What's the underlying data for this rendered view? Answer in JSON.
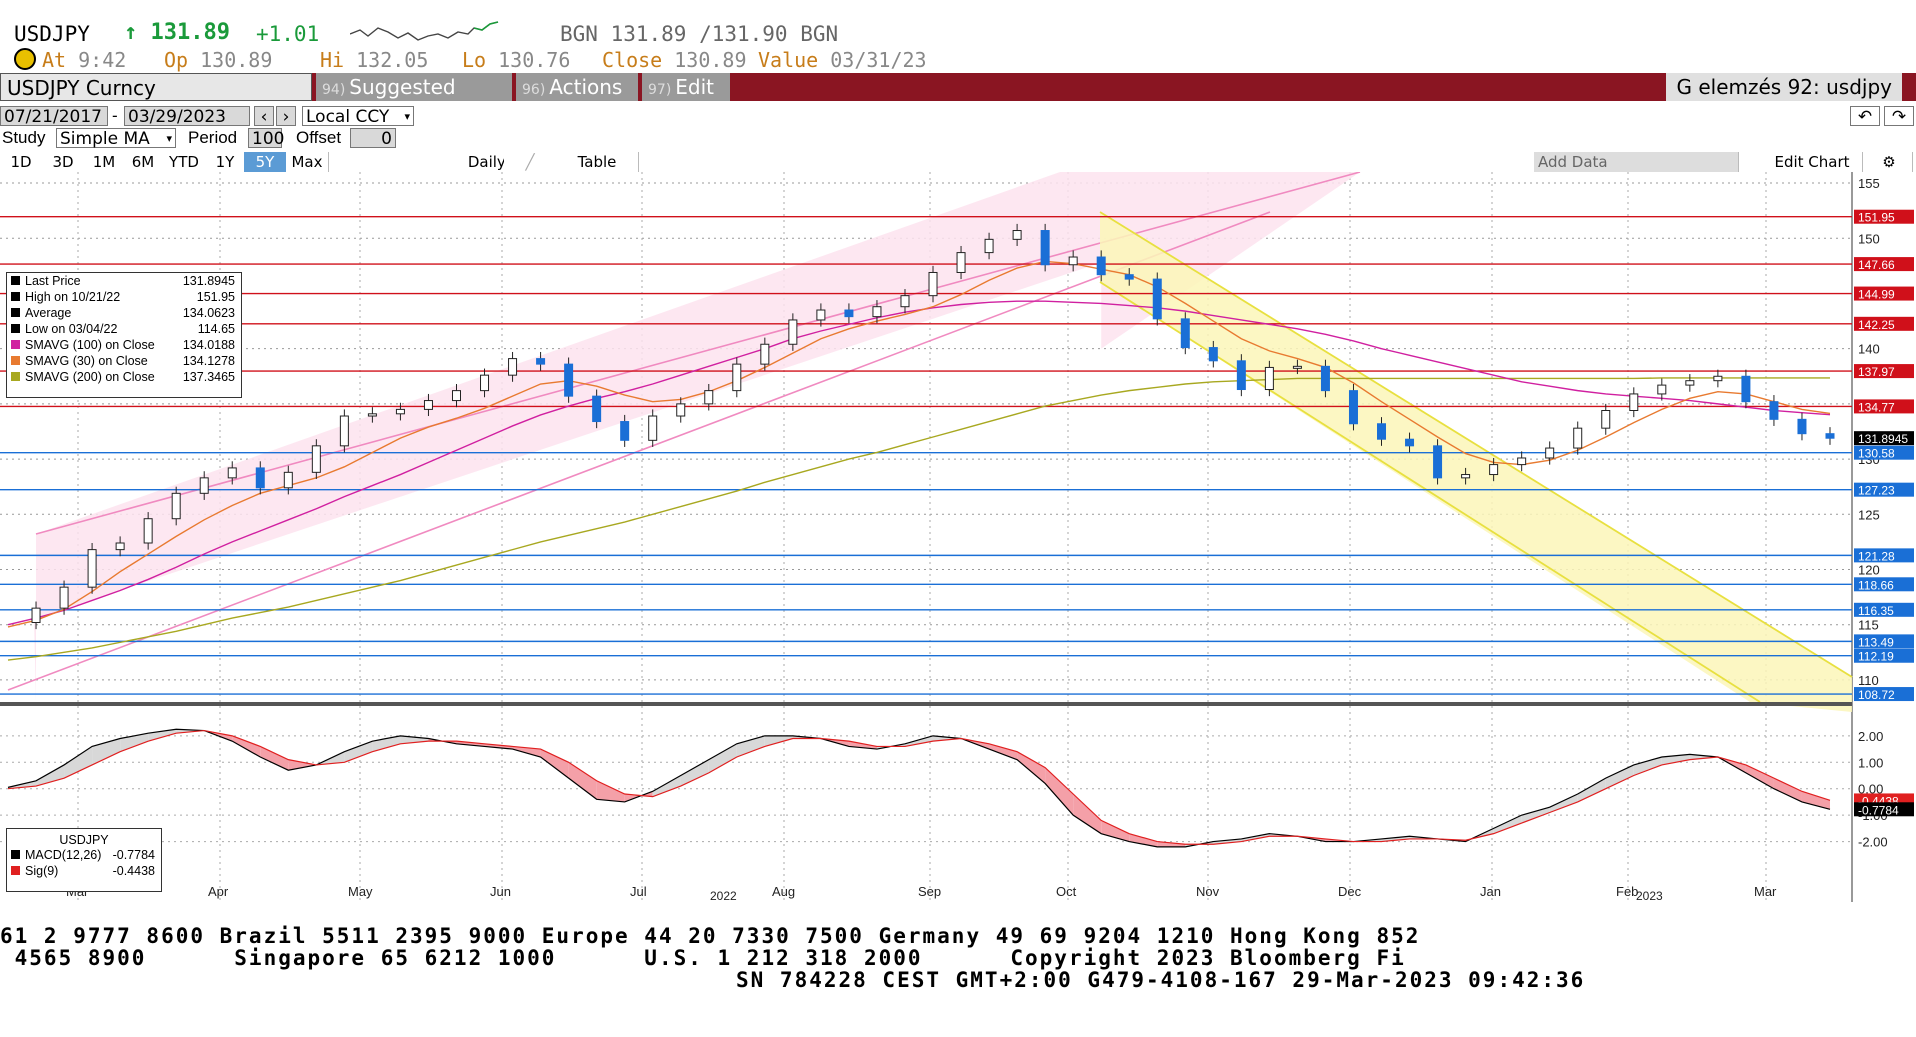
{
  "header": {
    "ticker": "USDJPY",
    "last": "↑ 131.89",
    "change": "+1.01",
    "bid_ask": "BGN 131.89 /131.90 BGN",
    "at_label": "At",
    "at_value": "9:42",
    "op_label": "Op",
    "op_value": "130.89",
    "hi_label": "Hi",
    "hi_value": "132.05",
    "lo_label": "Lo",
    "lo_value": "130.76",
    "close_label": "Close",
    "close_value": "130.89",
    "value_label": "Value",
    "value_value": "03/31/23"
  },
  "menubar": {
    "security": "USDJPY Curncy",
    "suggested": "Suggested Charts",
    "suggested_num": "94)",
    "actions": "Actions",
    "actions_num": "96)",
    "edit": "Edit",
    "edit_num": "97)",
    "right_title": "G elemzés 92: usdjpy"
  },
  "controls": {
    "start_date": "07/21/2017",
    "end_date": "03/29/2023",
    "currency": "Local CCY",
    "study_label": "Study",
    "study_value": "Simple MA",
    "period_label": "Period",
    "period_value": "100",
    "offset_label": "Offset",
    "offset_value": "0",
    "add_data": "Add Data",
    "edit_chart": "Edit Chart",
    "table": "Table",
    "frequency": "Daily"
  },
  "time_buttons": [
    "1D",
    "3D",
    "1M",
    "6M",
    "YTD",
    "1Y",
    "5Y",
    "Max"
  ],
  "selected_time_button": "5Y",
  "legend": {
    "rows": [
      {
        "label": "Last Price",
        "value": "131.8945",
        "color": "#000000"
      },
      {
        "label": "High on 10/21/22",
        "value": "151.95",
        "color": "#000000"
      },
      {
        "label": "Average",
        "value": "134.0623",
        "color": "#000000"
      },
      {
        "label": "Low on 03/04/22",
        "value": "114.65",
        "color": "#000000"
      },
      {
        "label": "SMAVG (100)  on Close",
        "value": "134.0188",
        "color": "#d020a0"
      },
      {
        "label": "SMAVG (30)  on Close",
        "value": "134.1278",
        "color": "#e87a30"
      },
      {
        "label": "SMAVG (200)  on Close",
        "value": "137.3465",
        "color": "#a8a820"
      }
    ]
  },
  "macd_legend": {
    "title": "USDJPY",
    "rows": [
      {
        "label": "MACD(12,26)",
        "value": "-0.7784",
        "color": "#000000"
      },
      {
        "label": "Sig(9)",
        "value": "-0.4438",
        "color": "#e02020"
      }
    ]
  },
  "chart_data": {
    "type": "candlestick",
    "title": "USDJPY Curncy",
    "y_range": [
      108,
      156
    ],
    "y_ticks": [
      110,
      115,
      120,
      125,
      130,
      135,
      140,
      145,
      150,
      155
    ],
    "price_tags": [
      {
        "value": 151.95,
        "label": "151.95",
        "type": "resistance"
      },
      {
        "value": 147.66,
        "label": "147.66",
        "type": "resistance"
      },
      {
        "value": 144.99,
        "label": "144.99",
        "type": "resistance"
      },
      {
        "value": 142.25,
        "label": "142.25",
        "type": "resistance"
      },
      {
        "value": 137.97,
        "label": "137.97",
        "type": "resistance"
      },
      {
        "value": 134.77,
        "label": "134.77",
        "type": "resistance"
      },
      {
        "value": 131.8945,
        "label": "131.8945",
        "type": "last"
      },
      {
        "value": 130.58,
        "label": "130.58",
        "type": "support"
      },
      {
        "value": 127.23,
        "label": "127.23",
        "type": "support"
      },
      {
        "value": 121.28,
        "label": "121.28",
        "type": "support"
      },
      {
        "value": 118.66,
        "label": "118.66",
        "type": "support"
      },
      {
        "value": 116.35,
        "label": "116.35",
        "type": "support"
      },
      {
        "value": 113.49,
        "label": "113.49",
        "type": "support"
      },
      {
        "value": 112.19,
        "label": "112.19",
        "type": "support"
      },
      {
        "value": 108.72,
        "label": "108.72",
        "type": "support"
      }
    ],
    "x_labels": [
      "Mar",
      "Apr",
      "May",
      "Jun",
      "Jul",
      "Aug",
      "Sep",
      "Oct",
      "Nov",
      "Dec",
      "Jan",
      "Feb",
      "Mar"
    ],
    "year_labels": [
      "2022",
      "2023"
    ],
    "price_weekly": [
      115.2,
      116.5,
      118.4,
      121.8,
      122.4,
      124.6,
      126.9,
      128.3,
      129.2,
      127.4,
      128.8,
      131.2,
      133.9,
      134.1,
      134.5,
      135.3,
      136.2,
      137.6,
      139.1,
      138.6,
      135.7,
      133.4,
      131.7,
      133.9,
      135.0,
      136.2,
      138.6,
      140.4,
      142.6,
      143.5,
      142.9,
      143.8,
      144.8,
      146.9,
      148.7,
      149.9,
      150.7,
      147.6,
      148.3,
      146.7,
      146.3,
      142.7,
      140.1,
      138.9,
      136.3,
      138.3,
      138.4,
      136.2,
      133.2,
      131.8,
      131.2,
      128.3,
      128.6,
      129.5,
      130.1,
      131.0,
      132.8,
      134.4,
      135.9,
      136.7,
      137.1,
      137.5,
      135.2,
      133.6,
      132.3,
      131.89
    ],
    "sma100": [
      115,
      115.6,
      116.3,
      117.2,
      118.1,
      119.1,
      120.2,
      121.4,
      122.5,
      123.5,
      124.5,
      125.5,
      126.6,
      127.6,
      128.6,
      129.7,
      130.8,
      131.9,
      133.0,
      134.0,
      134.8,
      135.5,
      136.1,
      136.8,
      137.6,
      138.4,
      139.2,
      140.0,
      140.9,
      141.6,
      142.2,
      142.8,
      143.3,
      143.7,
      144.0,
      144.2,
      144.3,
      144.3,
      144.2,
      144.1,
      143.9,
      143.7,
      143.4,
      143.0,
      142.6,
      142.2,
      141.8,
      141.3,
      140.7,
      140.0,
      139.4,
      138.8,
      138.2,
      137.6,
      137.0,
      136.6,
      136.2,
      135.9,
      135.7,
      135.5,
      135.3,
      135.0,
      134.7,
      134.4,
      134.2,
      134.02
    ],
    "sma30": [
      114.8,
      115.4,
      116.4,
      118.0,
      119.8,
      121.4,
      123.0,
      124.5,
      125.8,
      126.9,
      127.6,
      128.3,
      129.3,
      130.6,
      131.9,
      132.9,
      133.7,
      134.6,
      135.7,
      136.8,
      137.1,
      136.6,
      135.8,
      135.2,
      135.4,
      136.1,
      137.1,
      138.3,
      139.6,
      140.9,
      141.8,
      142.5,
      143.1,
      143.8,
      144.9,
      146.2,
      147.3,
      147.9,
      147.7,
      147.2,
      146.7,
      145.6,
      144.1,
      142.5,
      140.9,
      139.8,
      139.1,
      138.3,
      136.9,
      135.2,
      133.6,
      132.0,
      130.5,
      129.7,
      129.5,
      129.9,
      130.8,
      132.0,
      133.3,
      134.5,
      135.5,
      136.1,
      135.9,
      135.2,
      134.5,
      134.13
    ],
    "sma200": [
      111.8,
      112.1,
      112.5,
      112.9,
      113.4,
      113.9,
      114.4,
      115.0,
      115.6,
      116.1,
      116.6,
      117.2,
      117.8,
      118.4,
      119.0,
      119.7,
      120.4,
      121.1,
      121.8,
      122.5,
      123.1,
      123.7,
      124.3,
      125.0,
      125.7,
      126.4,
      127.1,
      127.9,
      128.6,
      129.3,
      130.0,
      130.6,
      131.3,
      132.0,
      132.7,
      133.4,
      134.1,
      134.8,
      135.3,
      135.8,
      136.2,
      136.5,
      136.8,
      137.0,
      137.1,
      137.2,
      137.3,
      137.3,
      137.3,
      137.3,
      137.3,
      137.3,
      137.3,
      137.3,
      137.3,
      137.3,
      137.3,
      137.3,
      137.3,
      137.35,
      137.35,
      137.35,
      137.35,
      137.35,
      137.35,
      137.35
    ],
    "macd": [
      0.05,
      0.3,
      0.9,
      1.6,
      1.9,
      2.1,
      2.25,
      2.2,
      1.8,
      1.2,
      0.7,
      0.9,
      1.4,
      1.8,
      2.0,
      1.9,
      1.7,
      1.6,
      1.5,
      1.2,
      0.4,
      -0.4,
      -0.5,
      -0.1,
      0.5,
      1.1,
      1.7,
      2.0,
      2.0,
      1.9,
      1.6,
      1.5,
      1.7,
      2.0,
      1.9,
      1.5,
      1.1,
      0.2,
      -1.0,
      -1.7,
      -2.0,
      -2.2,
      -2.2,
      -2.0,
      -1.9,
      -1.7,
      -1.8,
      -2.0,
      -2.0,
      -1.9,
      -1.8,
      -1.9,
      -2.0,
      -1.5,
      -1.0,
      -0.7,
      -0.2,
      0.4,
      0.9,
      1.2,
      1.3,
      1.2,
      0.6,
      0.0,
      -0.5,
      -0.78
    ],
    "signal": [
      0.0,
      0.1,
      0.4,
      0.9,
      1.4,
      1.8,
      2.1,
      2.2,
      2.0,
      1.6,
      1.1,
      0.9,
      1.0,
      1.4,
      1.7,
      1.8,
      1.8,
      1.7,
      1.6,
      1.5,
      1.0,
      0.3,
      -0.2,
      -0.3,
      0.1,
      0.6,
      1.2,
      1.6,
      1.9,
      1.9,
      1.8,
      1.6,
      1.6,
      1.8,
      1.9,
      1.7,
      1.4,
      0.8,
      -0.2,
      -1.2,
      -1.7,
      -2.0,
      -2.1,
      -2.1,
      -2.0,
      -1.8,
      -1.8,
      -1.9,
      -2.0,
      -2.0,
      -1.9,
      -1.9,
      -1.95,
      -1.7,
      -1.3,
      -0.9,
      -0.5,
      0.0,
      0.5,
      0.9,
      1.1,
      1.2,
      0.9,
      0.4,
      -0.1,
      -0.44
    ],
    "macd_ticks": [
      2.0,
      1.0,
      0.0,
      -1.0,
      -2.0
    ],
    "macd_tick_labels": [
      "2.00",
      "1.00",
      "0.00",
      "-1.00",
      "-2.00"
    ],
    "macd_tags": [
      {
        "value": -0.4438,
        "label": "-0.4438",
        "color": "#e02020"
      },
      {
        "value": -0.7784,
        "label": "-0.7784",
        "color": "#000000"
      }
    ]
  },
  "footer": {
    "line1": "61 2 9777 8600 Brazil 5511 2395 9000 Europe 44 20 7330 7500 Germany 49 69 9204 1210 Hong Kong 852",
    "line2": " 4565 8900      Singapore 65 6212 1000      U.S. 1 212 318 2000      Copyright 2023 Bloomberg Fi",
    "line3": "SN 784228 CEST GMT+2:00 G479-4108-167 29-Mar-2023 09:42:36"
  },
  "colors": {
    "menubar": "#8a1522",
    "up": "#ffffff",
    "down": "#1a6fd6",
    "resistance": "#d0101a",
    "support": "#1a6fd6",
    "uptrend_channel": "#f7a8d0",
    "downtrend_channel": "#f2ef6a"
  }
}
